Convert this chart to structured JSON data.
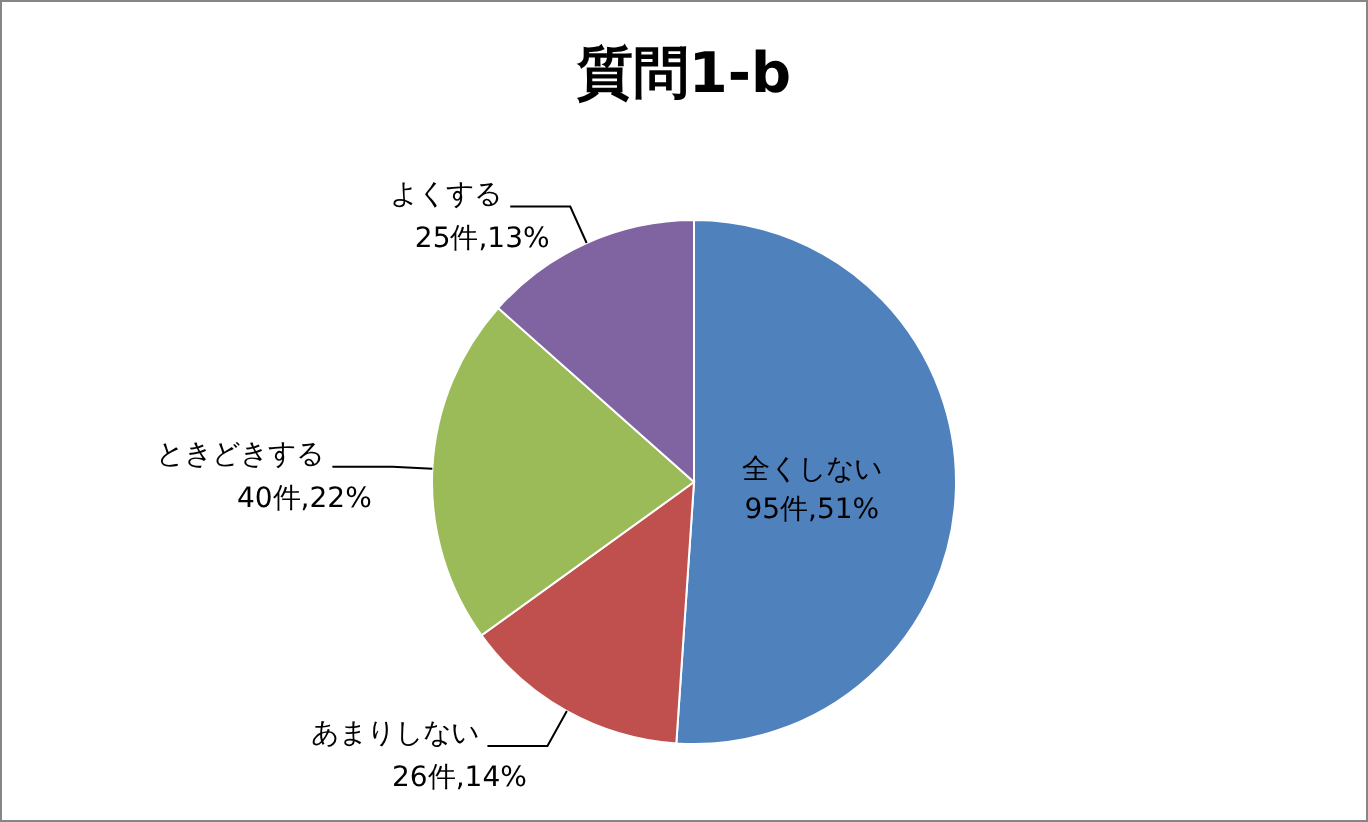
{
  "chart_data": {
    "type": "pie",
    "title": "質問1-b",
    "categories": [
      "全くしない",
      "あまりしない",
      "ときどきする",
      "よくする"
    ],
    "values": [
      95,
      26,
      40,
      25
    ],
    "value_labels": [
      "95件,51%",
      "26件,14%",
      "40件,22%",
      "25件,13%"
    ],
    "colors": [
      "#4f81bd",
      "#c0504d",
      "#9bbb59",
      "#8064a2"
    ],
    "legend": false
  }
}
